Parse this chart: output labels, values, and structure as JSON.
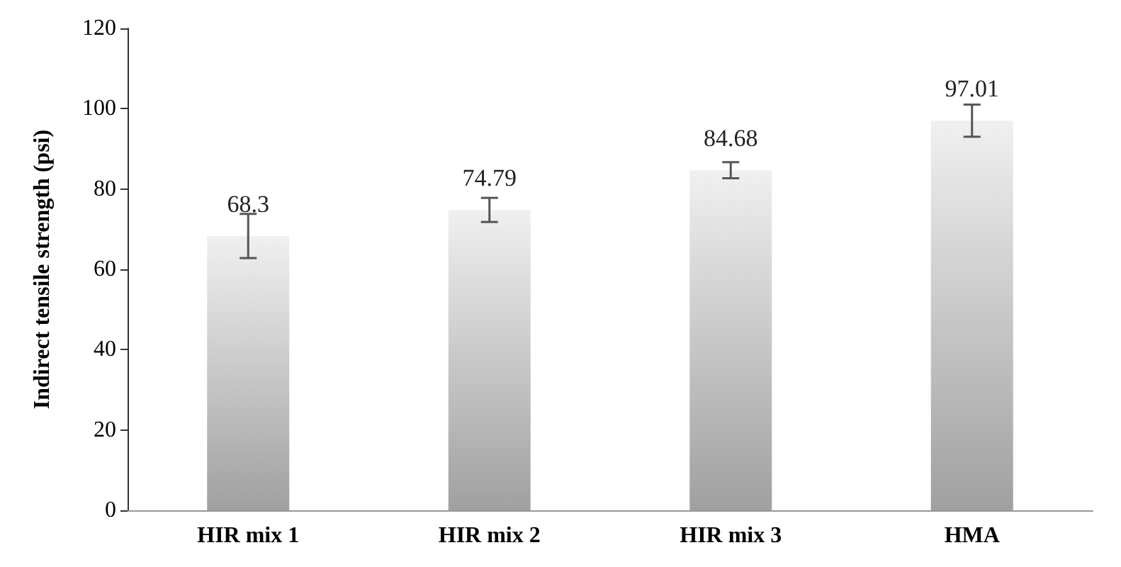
{
  "chart_data": {
    "type": "bar",
    "ylabel": "Indirect tensile strength (psi)",
    "categories": [
      "HIR mix 1",
      "HIR mix 2",
      "HIR mix 3",
      "HMA"
    ],
    "values": [
      68.3,
      74.79,
      84.68,
      97.01
    ],
    "errors": [
      5.5,
      3,
      2,
      4
    ],
    "color": "#c8c8c8",
    "ylim": [
      0,
      120
    ],
    "yticks": [
      0,
      20,
      40,
      60,
      80,
      100,
      120
    ],
    "grid": false,
    "data_labels": true
  }
}
